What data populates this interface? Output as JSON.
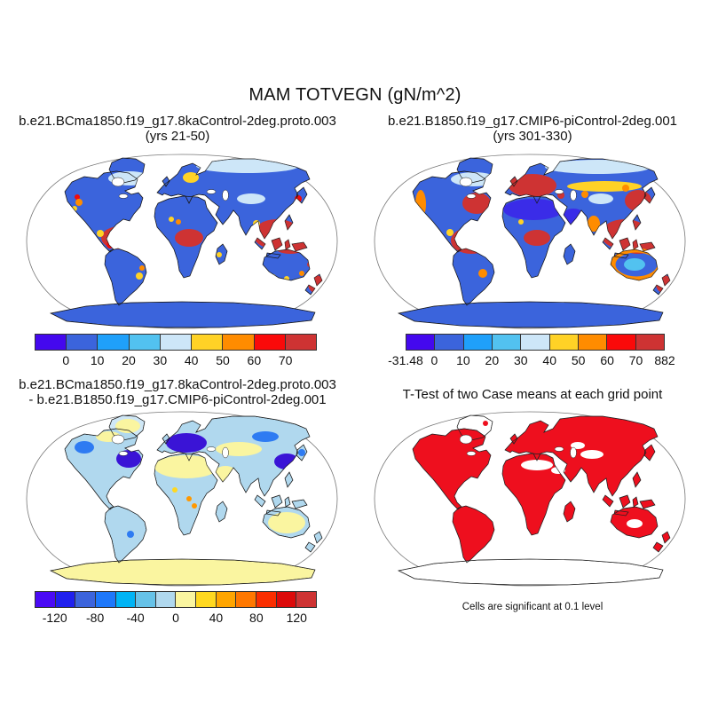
{
  "figure": {
    "title": "MAM TOTVEGN (gN/m^2)",
    "background": "#ffffff"
  },
  "panels": [
    {
      "id": "case1",
      "title_lines": [
        "b.e21.BCma1850.f19_g17.8kaControl-2deg.proto.003",
        "(yrs 21-50)"
      ],
      "colorbar": {
        "colors": [
          "#4408ee",
          "#3b64dc",
          "#1fa0fa",
          "#52c2f0",
          "#cde6f8",
          "#ffd226",
          "#ff8c00",
          "#fa0a0a",
          "#ce3333"
        ],
        "ticks": [
          {
            "label": "0",
            "boundary": 1
          },
          {
            "label": "10",
            "boundary": 2
          },
          {
            "label": "20",
            "boundary": 3
          },
          {
            "label": "30",
            "boundary": 4
          },
          {
            "label": "40",
            "boundary": 5
          },
          {
            "label": "50",
            "boundary": 6
          },
          {
            "label": "60",
            "boundary": 7
          },
          {
            "label": "70",
            "boundary": 8
          }
        ]
      }
    },
    {
      "id": "case2",
      "title_lines": [
        "b.e21.B1850.f19_g17.CMIP6-piControl-2deg.001",
        "(yrs 301-330)"
      ],
      "colorbar": {
        "colors": [
          "#4408ee",
          "#3b64dc",
          "#1fa0fa",
          "#52c2f0",
          "#cde6f8",
          "#ffd226",
          "#ff8c00",
          "#fa0a0a",
          "#ce3333"
        ],
        "ticks": [
          {
            "label": "-31.48",
            "boundary": 0
          },
          {
            "label": "0",
            "boundary": 1
          },
          {
            "label": "10",
            "boundary": 2
          },
          {
            "label": "20",
            "boundary": 3
          },
          {
            "label": "30",
            "boundary": 4
          },
          {
            "label": "40",
            "boundary": 5
          },
          {
            "label": "50",
            "boundary": 6
          },
          {
            "label": "60",
            "boundary": 7
          },
          {
            "label": "70",
            "boundary": 8
          },
          {
            "label": "882",
            "boundary": 9
          }
        ]
      }
    },
    {
      "id": "difference",
      "title_lines": [
        "b.e21.BCma1850.f19_g17.8kaControl-2deg.proto.003",
        "- b.e21.B1850.f19_g17.CMIP6-piControl-2deg.001"
      ],
      "colorbar": {
        "colors": [
          "#4a0af5",
          "#2020ee",
          "#3c64dc",
          "#1e78fa",
          "#00b4f5",
          "#66c2e8",
          "#b0d8ee",
          "#faf5a0",
          "#ffd820",
          "#ffa500",
          "#ff7800",
          "#fa2e00",
          "#dc0a0a",
          "#ce3333"
        ],
        "ticks": [
          {
            "label": "-120",
            "boundary": 1
          },
          {
            "label": "-80",
            "boundary": 3
          },
          {
            "label": "-40",
            "boundary": 5
          },
          {
            "label": "0",
            "boundary": 7
          },
          {
            "label": "40",
            "boundary": 9
          },
          {
            "label": "80",
            "boundary": 11
          },
          {
            "label": "120",
            "boundary": 13
          }
        ]
      }
    },
    {
      "id": "ttest",
      "title_lines": [
        "T-Test of two Case means at each grid point"
      ],
      "caption": "Cells are significant at 0.1 level"
    }
  ],
  "map_styles": {
    "case1": {
      "ocean": "#ffffff",
      "outline": "#777777",
      "coastline": "#1a1a1a",
      "land": "#3b64dc",
      "greenland": "#3b64dc",
      "antarctica": "#3b64dc",
      "red": "#ce3333",
      "bright_red": "#f20a0a",
      "orange": "#ff8c00",
      "gold": "#ffd226",
      "pale_blue": "#cde6f8",
      "sky_blue": "#52c2f0"
    },
    "case2": {
      "ocean": "#ffffff",
      "outline": "#777777",
      "coastline": "#1a1a1a",
      "land": "#3b64dc",
      "greenland": "#3b64dc",
      "antarctica": "#3b64dc",
      "violet": "#3a2ce8",
      "red": "#ce3333",
      "bright_red": "#f20a0a",
      "orange": "#ff8c00",
      "gold": "#ffd226",
      "pale_blue": "#cde6f8",
      "sky_blue": "#52c2f0"
    },
    "difference": {
      "ocean": "#ffffff",
      "outline": "#777777",
      "coastline": "#1a1a1a",
      "land": "#b0d8ee",
      "greenland": "#cfe7f6",
      "antarctica": "#faf5a0",
      "violet": "#3a14d6",
      "med_blue": "#2e7bf2",
      "pale_yellow": "#faf5a0",
      "orange": "#ff9800",
      "gold": "#ffd820"
    },
    "ttest": {
      "ocean": "#ffffff",
      "outline": "#777777",
      "coastline": "#222222",
      "land": "#ee0f1e",
      "greenland": "#ffffff",
      "antarctica": "#ffffff",
      "white": "#ffffff",
      "red": "#ee0f1e"
    }
  },
  "chart_data": {
    "type": "heatmap",
    "title": "MAM TOTVEGN (gN/m^2)",
    "layout": "2x2 grid of Robinson-projection world maps, white ocean, colored land grid cells",
    "panels": [
      {
        "position": "top-left",
        "title": "b.e21.BCma1850.f19_g17.8kaControl-2deg.proto.003",
        "subtitle": "(yrs 21-50)",
        "colorbar_levels": [
          0,
          10,
          20,
          30,
          40,
          50,
          60,
          70
        ],
        "colorbar_colors": [
          "#4408ee",
          "#3b64dc",
          "#1fa0fa",
          "#52c2f0",
          "#cde6f8",
          "#ffd226",
          "#ff8c00",
          "#fa0a0a",
          "#ce3333"
        ],
        "summary": "Land mostly low values (blue); high values (red >70) over Amazon, Congo basin, Southeast Asia/Indonesia, New Zealand; scattered yellow/orange midlatitude coastal cells; pale-blue band across northern Canada and Siberia; Antarctica lowest class."
      },
      {
        "position": "top-right",
        "title": "b.e21.B1850.f19_g17.CMIP6-piControl-2deg.001",
        "subtitle": "(yrs 301-330)",
        "colorbar_levels": [
          -31.48,
          0,
          10,
          20,
          30,
          40,
          50,
          60,
          70,
          882
        ],
        "colorbar_colors": [
          "#4408ee",
          "#3b64dc",
          "#1fa0fa",
          "#52c2f0",
          "#cde6f8",
          "#ffd226",
          "#ff8c00",
          "#fa0a0a",
          "#ce3333"
        ],
        "summary": "High values (red) over Europe, eastern North America, Amazon, Congo, East and Southeast Asia; darkest blue (below 0) over Sahara and Arabia; pale-blue high-latitude band; Antarctica lowest class."
      },
      {
        "position": "bottom-left",
        "title": "b.e21.BCma1850.f19_g17.8kaControl-2deg.proto.003 - b.e21.B1850.f19_g17.CMIP6-piControl-2deg.001",
        "colorbar_levels": [
          -120,
          -80,
          -40,
          0,
          40,
          80,
          120
        ],
        "colorbar_colors": [
          "#4a0af5",
          "#2020ee",
          "#3c64dc",
          "#1e78fa",
          "#00b4f5",
          "#66c2e8",
          "#b0d8ee",
          "#faf5a0",
          "#ffd820",
          "#ffa500",
          "#ff7800",
          "#fa2e00",
          "#dc0a0a",
          "#ce3333"
        ],
        "summary": "Difference map: land mostly weak negative (light blue); strong negative (deep violet-blue) over eastern US, Europe and east China; weak positive (pale yellow) over Sahara, Arabia, central Australia and Antarctica; few orange cells in central Africa."
      },
      {
        "position": "bottom-right",
        "title": "T-Test of two Case means at each grid point",
        "caption": "Cells are significant at 0.1 level",
        "summary": "Significance mask: nearly all vegetated land cells red (significant); Antarctica and Greenland unshaded; small unshaded holes in Sahara and central Asia."
      }
    ]
  }
}
